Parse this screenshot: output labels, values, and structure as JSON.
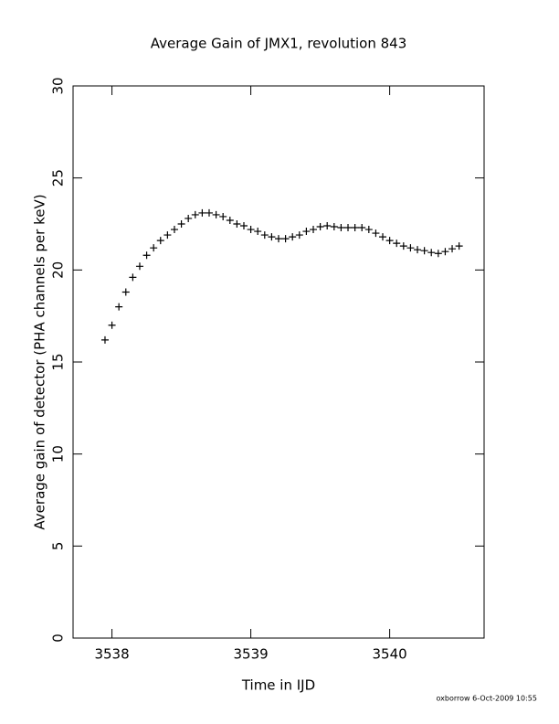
{
  "chart_data": {
    "type": "scatter",
    "title": "Average Gain of JMX1, revolution 843",
    "xlabel": "Time in IJD",
    "ylabel": "Average gain of detector (PHA channels per keV)",
    "footer": "oxborrow  6-Oct-2009 10:55",
    "xlim": [
      3537.72,
      3540.68
    ],
    "ylim": [
      0,
      30
    ],
    "xticks": [
      3538,
      3539,
      3540
    ],
    "yticks": [
      0,
      5,
      10,
      15,
      20,
      25,
      30
    ],
    "marker": "+",
    "color": "#000000",
    "x": [
      3537.95,
      3538.0,
      3538.05,
      3538.1,
      3538.15,
      3538.2,
      3538.25,
      3538.3,
      3538.35,
      3538.4,
      3538.45,
      3538.5,
      3538.55,
      3538.6,
      3538.65,
      3538.7,
      3538.75,
      3538.8,
      3538.85,
      3538.9,
      3538.95,
      3539.0,
      3539.05,
      3539.1,
      3539.15,
      3539.2,
      3539.25,
      3539.3,
      3539.35,
      3539.4,
      3539.45,
      3539.5,
      3539.55,
      3539.6,
      3539.65,
      3539.7,
      3539.75,
      3539.8,
      3539.85,
      3539.9,
      3539.95,
      3540.0,
      3540.05,
      3540.1,
      3540.15,
      3540.2,
      3540.25,
      3540.3,
      3540.35,
      3540.4,
      3540.45,
      3540.5
    ],
    "values": [
      16.2,
      17.0,
      18.0,
      18.8,
      19.6,
      20.2,
      20.8,
      21.2,
      21.6,
      21.9,
      22.2,
      22.5,
      22.8,
      23.0,
      23.1,
      23.1,
      23.0,
      22.9,
      22.7,
      22.5,
      22.4,
      22.2,
      22.1,
      21.9,
      21.8,
      21.7,
      21.7,
      21.8,
      21.9,
      22.1,
      22.2,
      22.35,
      22.4,
      22.35,
      22.3,
      22.3,
      22.3,
      22.3,
      22.2,
      22.0,
      21.8,
      21.6,
      21.45,
      21.3,
      21.2,
      21.1,
      21.05,
      20.95,
      20.9,
      21.0,
      21.15,
      21.3
    ]
  }
}
